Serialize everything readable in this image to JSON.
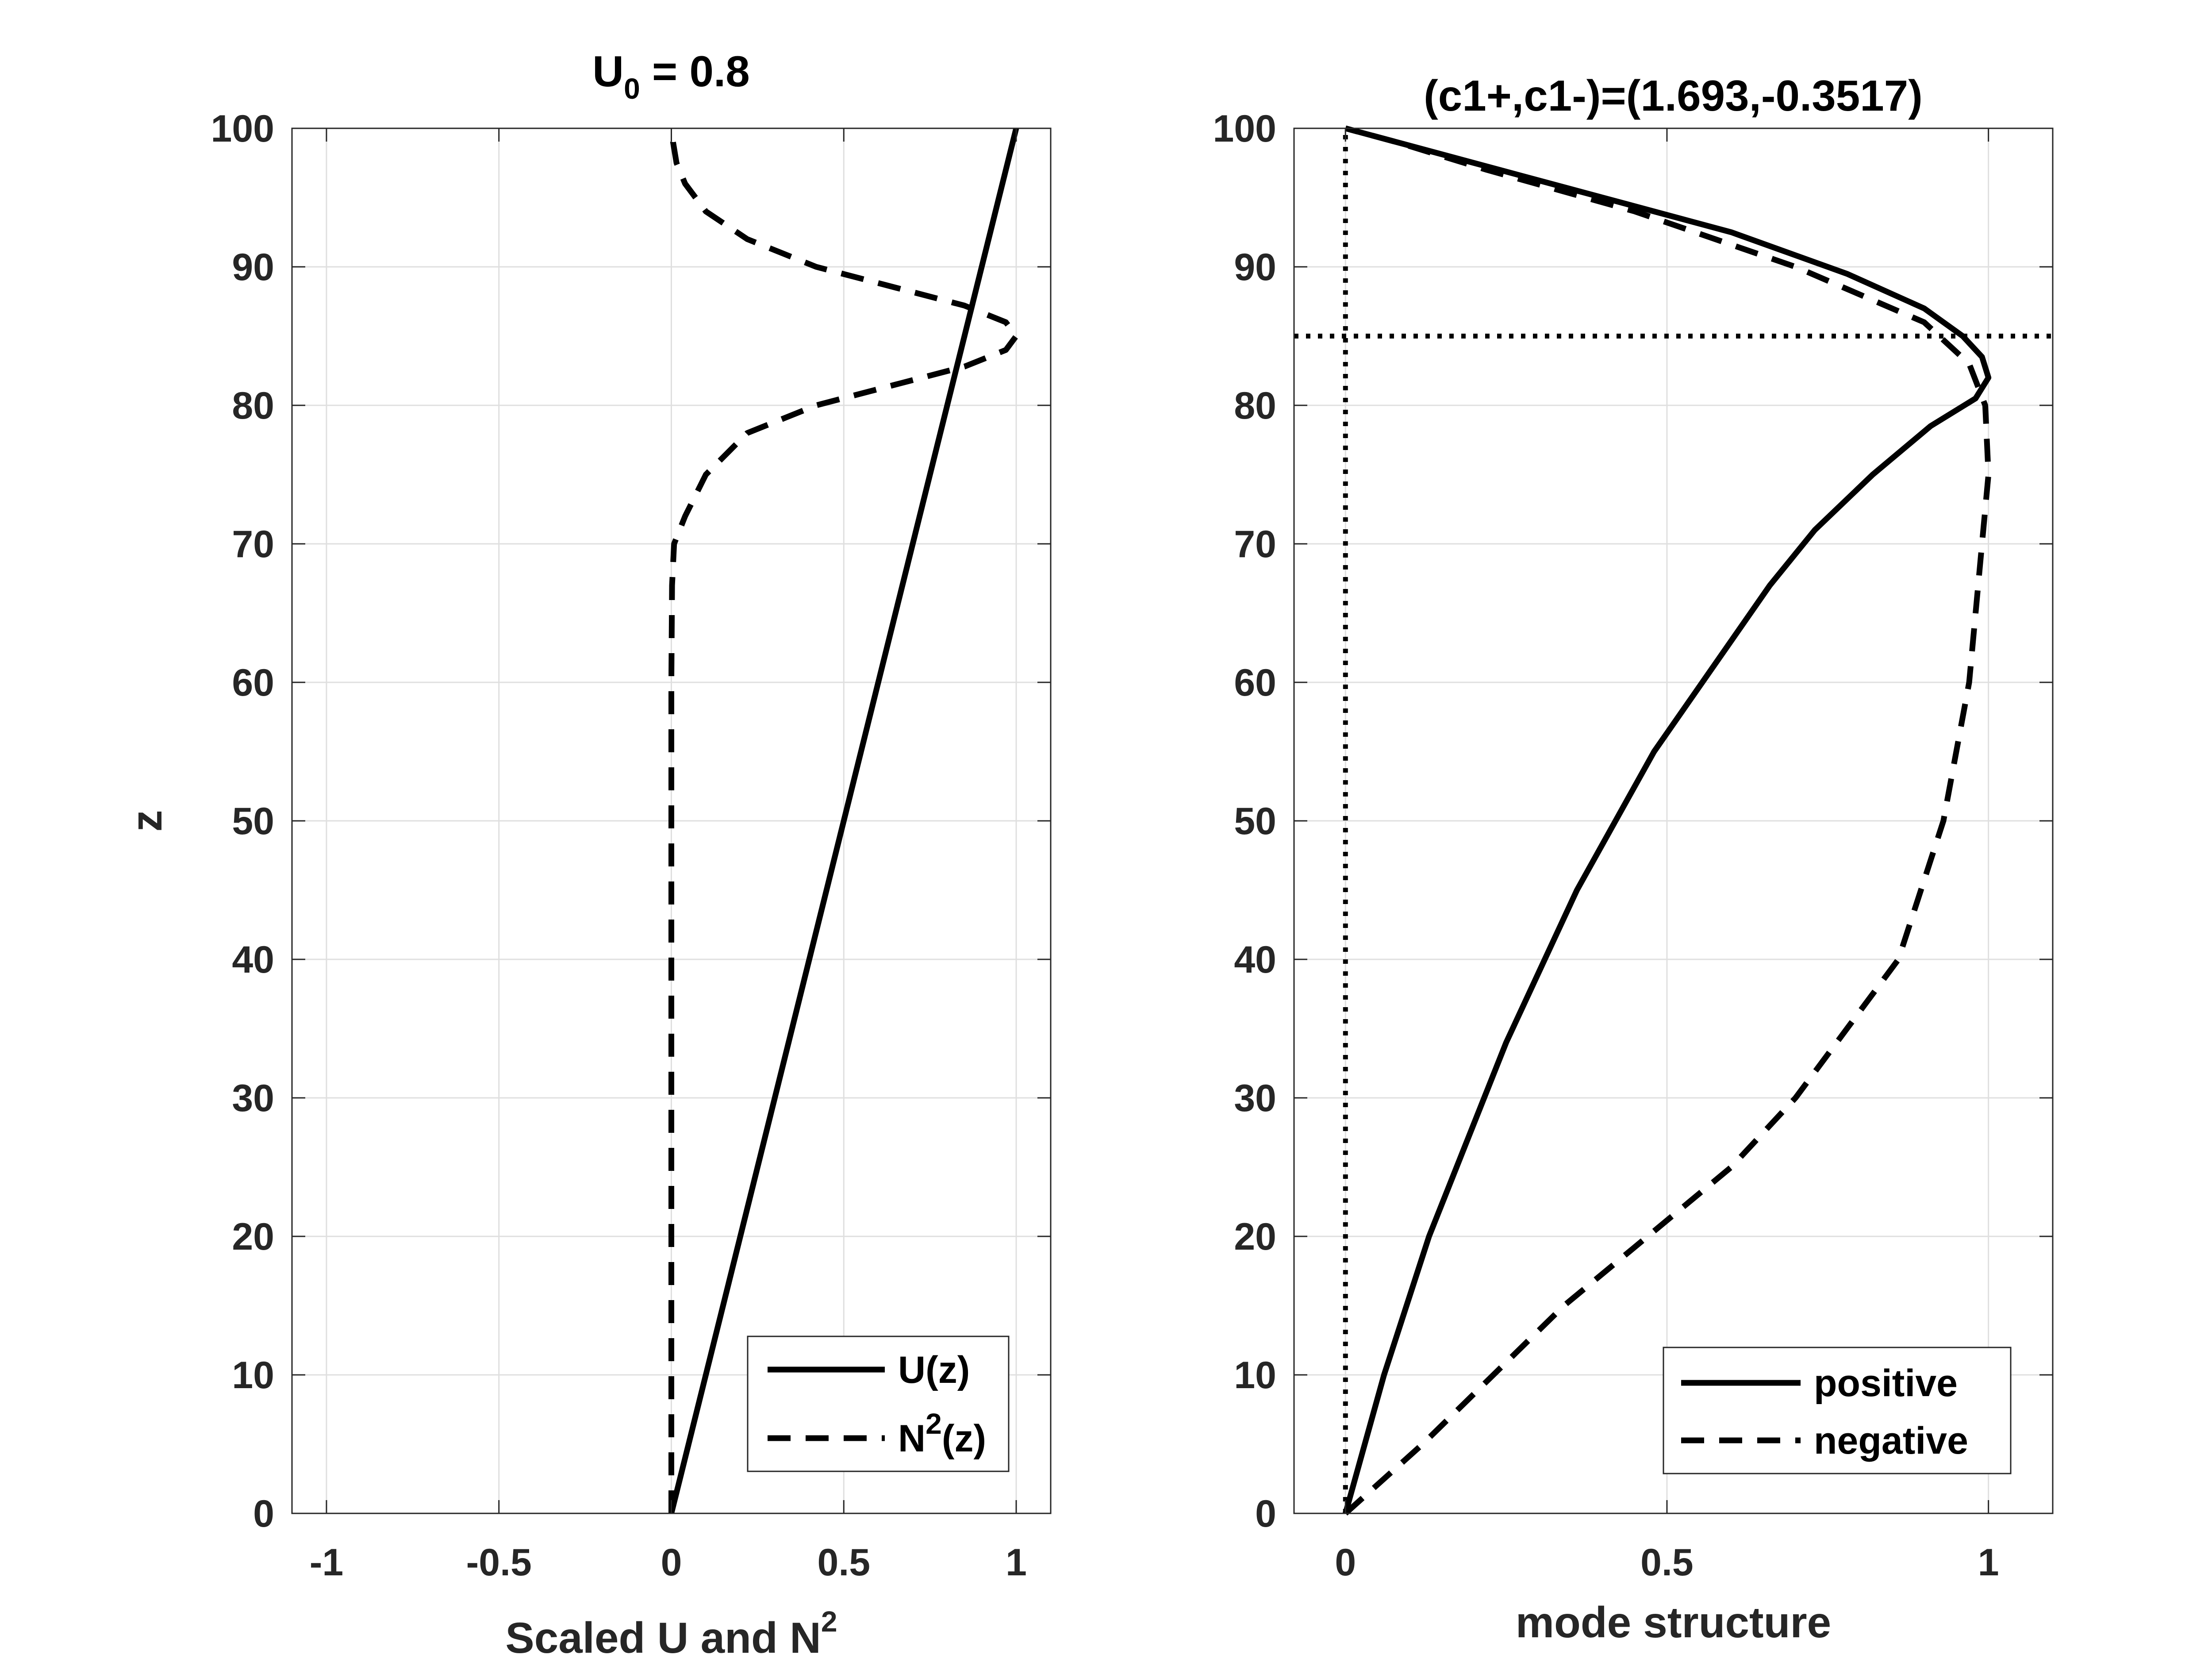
{
  "chart_data": [
    {
      "type": "line",
      "title": "U",
      "title_sub": "0",
      "title_suffix": " = 0.8",
      "xlabel": "Scaled U and N",
      "xlabel_sup": "2",
      "ylabel": "z",
      "xlim": [
        -1.1,
        1.1
      ],
      "ylim": [
        0,
        100
      ],
      "xticks": [
        -1,
        -0.5,
        0,
        0.5,
        1
      ],
      "xtick_labels": [
        "-1",
        "-0.5",
        "0",
        "0.5",
        "1"
      ],
      "yticks": [
        0,
        10,
        20,
        30,
        40,
        50,
        60,
        70,
        80,
        90,
        100
      ],
      "ytick_labels": [
        "0",
        "10",
        "20",
        "30",
        "40",
        "50",
        "60",
        "70",
        "80",
        "90",
        "100"
      ],
      "grid": true,
      "legend_position": "bottom-right",
      "series": [
        {
          "name": "U(z)",
          "style": "solid",
          "x": [
            0,
            1
          ],
          "y": [
            0,
            100
          ]
        },
        {
          "name": "N",
          "name_sup": "2",
          "name_suffix": "(z)",
          "style": "dashed",
          "x": [
            0,
            0,
            0,
            0.002,
            0.008,
            0.04,
            0.1,
            0.22,
            0.42,
            0.65,
            0.85,
            0.97,
            1.0,
            0.97,
            0.85,
            0.65,
            0.42,
            0.22,
            0.1,
            0.04,
            0.015,
            0.005,
            0.012
          ],
          "y": [
            0,
            30,
            60,
            67,
            70,
            72,
            75,
            78,
            80,
            81.5,
            82.8,
            84,
            85,
            86,
            87.2,
            88.5,
            90,
            92,
            94,
            96,
            97.5,
            99,
            100
          ]
        }
      ]
    },
    {
      "type": "line",
      "title": "(c1+,c1-)=(1.693,-0.3517)",
      "xlabel": "mode structure",
      "ylabel": "",
      "xlim": [
        -0.08,
        1.1
      ],
      "ylim": [
        0,
        100
      ],
      "xticks": [
        0,
        0.5,
        1
      ],
      "xtick_labels": [
        "0",
        "0.5",
        "1"
      ],
      "yticks": [
        0,
        10,
        20,
        30,
        40,
        50,
        60,
        70,
        80,
        90,
        100
      ],
      "ytick_labels": [
        "0",
        "10",
        "20",
        "30",
        "40",
        "50",
        "60",
        "70",
        "80",
        "90",
        "100"
      ],
      "grid": true,
      "legend_position": "bottom-right",
      "series": [
        {
          "name": "positive",
          "style": "solid",
          "x": [
            0,
            0.06,
            0.13,
            0.19,
            0.25,
            0.31,
            0.36,
            0.42,
            0.48,
            0.54,
            0.6,
            0.66,
            0.73,
            0.82,
            0.91,
            0.98,
            1.0,
            0.99,
            0.96,
            0.9,
            0.78,
            0.6,
            0.4,
            0.2,
            0.08,
            0
          ],
          "y": [
            0,
            10,
            20,
            27,
            34,
            40,
            45,
            50,
            55,
            59,
            63,
            67,
            71,
            75,
            78.5,
            80.5,
            82,
            83.5,
            85,
            87,
            89.5,
            92.5,
            95,
            97.5,
            99,
            100
          ]
        },
        {
          "name": "negative",
          "style": "dashed",
          "x": [
            0,
            0.12,
            0.23,
            0.34,
            0.47,
            0.6,
            0.7,
            0.78,
            0.86,
            0.93,
            0.97,
            0.99,
            1.0,
            0.995,
            0.97,
            0.9,
            0.7,
            0.45,
            0.22,
            0.08,
            0
          ],
          "y": [
            0,
            5,
            10,
            15,
            20,
            25,
            30,
            35,
            40,
            50,
            60,
            70,
            75,
            80,
            83,
            86,
            90,
            94,
            97,
            99,
            100
          ]
        },
        {
          "name": "",
          "style": "dotted",
          "x": [
            0,
            0
          ],
          "y": [
            0,
            100
          ]
        },
        {
          "name": "",
          "style": "dotted",
          "x": [
            -0.08,
            1.1
          ],
          "y": [
            85,
            85
          ]
        }
      ]
    }
  ]
}
